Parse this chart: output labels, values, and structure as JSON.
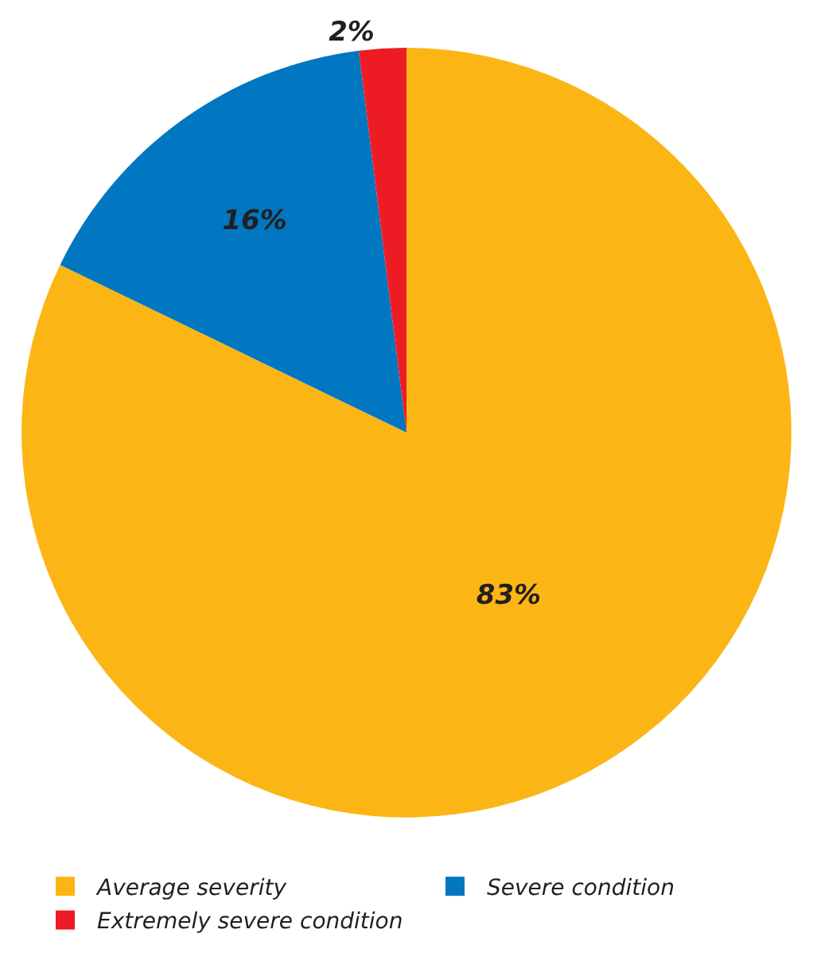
{
  "chart_data": {
    "type": "pie",
    "categories": [
      "Average severity",
      "Severe condition",
      "Extremely severe condition"
    ],
    "values": [
      83,
      16,
      2
    ],
    "value_labels": [
      "83%",
      "16%",
      "2%"
    ],
    "colors": [
      "#fbb615",
      "#0077c0",
      "#ed1c24"
    ],
    "legend": "bottom"
  }
}
